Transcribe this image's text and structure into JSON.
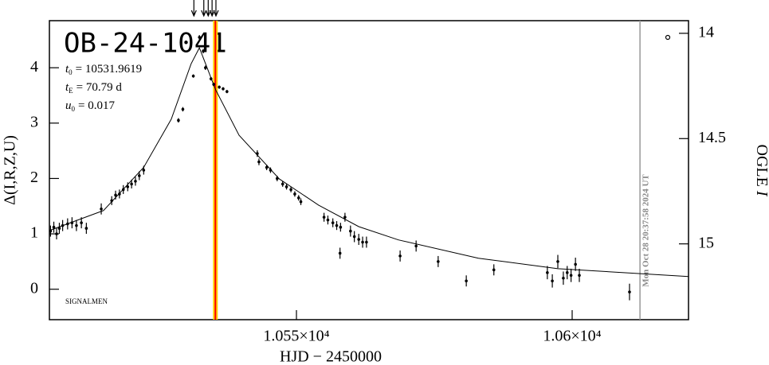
{
  "chart_data": {
    "type": "scatter",
    "title": "OB-24-1041",
    "params": [
      {
        "symbol": "t",
        "sub": "0",
        "text": "= 10531.9619"
      },
      {
        "symbol": "t",
        "sub": "E",
        "text": "= 70.79 d"
      },
      {
        "symbol": "u",
        "sub": "0",
        "text": "= 0.017"
      }
    ],
    "footnote": "SIGNALMEN",
    "timestamp": "Mon Oct 28 20:37:58 2024 UT",
    "x_label": "HJD − 2450000",
    "y_label": "Δ(I,R,Z,U)",
    "y2_label": {
      "text": "OGLE ",
      "italic": "I"
    },
    "xlim": [
      10505.2,
      10621.1
    ],
    "xticks": [
      {
        "value": 10550,
        "label": "1.055×10⁴"
      },
      {
        "value": 10600,
        "label": "1.06×10⁴"
      }
    ],
    "ylim": [
      -0.55,
      4.85
    ],
    "yticks": [
      0,
      1,
      2,
      3,
      4
    ],
    "y2lim": [
      15.36,
      13.94
    ],
    "y2ticks": [
      14,
      14.5,
      15
    ],
    "highlight_x": 10535.3,
    "date_line_x": 10612.3,
    "arrows_x": [
      10531.4,
      10533.2,
      10534.0,
      10534.7,
      10535.4
    ],
    "series": [
      {
        "color": "#000000",
        "x": [
          10505.4,
          10506.0,
          10506.5,
          10507.0,
          10507.6,
          10508.5,
          10509.3,
          10510.1,
          10511.0,
          10511.9,
          10514.6,
          10516.5,
          10517.2,
          10517.9,
          10518.6,
          10519.4,
          10520.1,
          10520.8,
          10521.5,
          10522.3,
          10528.6,
          10529.4,
          10531.3,
          10532.4,
          10533.1,
          10533.5,
          10534.5,
          10535.0,
          10536.0,
          10536.7,
          10537.4,
          10542.9,
          10543.2,
          10544.6,
          10545.3,
          10546.5,
          10547.5,
          10548.2,
          10549.0,
          10549.7,
          10550.4,
          10550.8,
          10555.0,
          10555.7,
          10556.6,
          10557.3,
          10558.0,
          10557.9,
          10558.8,
          10559.8,
          10560.5,
          10561.3,
          10562.0,
          10562.7,
          10568.8,
          10571.7,
          10575.7,
          10580.8,
          10585.8,
          10595.5,
          10596.4,
          10597.4,
          10598.4,
          10599.1,
          10599.8,
          10600.6,
          10601.3,
          10610.4
        ],
        "values": [
          1.05,
          1.12,
          1.0,
          1.1,
          1.15,
          1.18,
          1.2,
          1.15,
          1.2,
          1.1,
          1.45,
          1.6,
          1.7,
          1.72,
          1.8,
          1.85,
          1.9,
          1.95,
          2.05,
          2.15,
          3.05,
          3.25,
          3.85,
          4.55,
          4.3,
          4.0,
          3.8,
          3.7,
          3.65,
          3.62,
          3.57,
          2.45,
          2.3,
          2.2,
          2.15,
          2.0,
          1.9,
          1.85,
          1.8,
          1.72,
          1.65,
          1.58,
          1.3,
          1.25,
          1.2,
          1.15,
          1.12,
          0.65,
          1.3,
          1.05,
          0.95,
          0.9,
          0.85,
          0.85,
          0.6,
          0.78,
          0.5,
          0.15,
          0.35,
          0.3,
          0.15,
          0.5,
          0.2,
          0.3,
          0.25,
          0.45,
          0.25,
          -0.05
        ],
        "errors": [
          0.1,
          0.1,
          0.1,
          0.1,
          0.1,
          0.1,
          0.1,
          0.1,
          0.1,
          0.1,
          0.1,
          0.08,
          0.08,
          0.08,
          0.08,
          0.08,
          0.08,
          0.08,
          0.08,
          0.08,
          0.04,
          0.04,
          0.03,
          0.04,
          0.04,
          0.04,
          0.03,
          0.03,
          0.03,
          0.03,
          0.03,
          0.06,
          0.06,
          0.05,
          0.05,
          0.05,
          0.05,
          0.05,
          0.05,
          0.05,
          0.05,
          0.06,
          0.08,
          0.08,
          0.08,
          0.08,
          0.08,
          0.1,
          0.08,
          0.1,
          0.1,
          0.1,
          0.1,
          0.1,
          0.1,
          0.1,
          0.1,
          0.1,
          0.1,
          0.12,
          0.12,
          0.12,
          0.12,
          0.12,
          0.12,
          0.12,
          0.12,
          0.15
        ]
      }
    ],
    "model": {
      "color": "#000000",
      "x": [
        10505.2,
        10515.0,
        10522.3,
        10527.3,
        10530.9,
        10532.4,
        10533.8,
        10535.3,
        10539.6,
        10546.9,
        10554.0,
        10561.3,
        10568.5,
        10583.0,
        10597.4,
        10621.1
      ],
      "values": [
        1.06,
        1.42,
        2.2,
        3.07,
        4.07,
        4.36,
        4.0,
        3.61,
        2.78,
        1.99,
        1.52,
        1.13,
        0.89,
        0.56,
        0.37,
        0.23
      ]
    }
  }
}
